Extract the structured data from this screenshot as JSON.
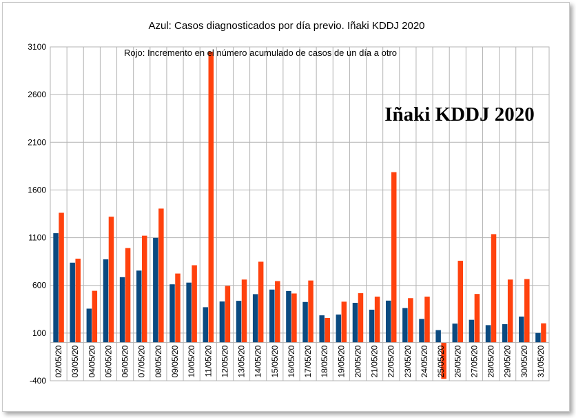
{
  "chart_data": {
    "type": "bar",
    "title": "Azul: Casos diagnosticados por día previo. Iñaki KDDJ 2020",
    "subtitle": "Rojo: Incremento en el número acumulado de casos de un día a otro",
    "watermark": "Iñaki KDDJ 2020",
    "xlabel": "",
    "ylabel": "",
    "ylim": [
      -400,
      3100
    ],
    "yticks": [
      -400,
      100,
      600,
      1100,
      1600,
      2100,
      2600,
      3100
    ],
    "grid": true,
    "legend": "none",
    "categories": [
      "02/05/20",
      "03/05/20",
      "04/05/20",
      "05/05/20",
      "06/05/20",
      "07/05/20",
      "08/05/20",
      "09/05/20",
      "10/05/20",
      "11/05/20",
      "12/05/20",
      "13/05/20",
      "14/05/20",
      "15/05/20",
      "16/05/20",
      "17/05/20",
      "18/05/20",
      "19/05/20",
      "20/05/20",
      "21/05/20",
      "22/05/20",
      "23/05/20",
      "24/05/20",
      "25/05/20",
      "26/05/20",
      "27/05/20",
      "28/05/20",
      "29/05/20",
      "30/05/20",
      "31/05/20"
    ],
    "series": [
      {
        "color": "#0b4a80",
        "values": [
          1147,
          838,
          356,
          873,
          686,
          755,
          1098,
          611,
          629,
          371,
          431,
          438,
          508,
          556,
          541,
          426,
          286,
          294,
          417,
          345,
          440,
          362,
          248,
          131,
          199,
          239,
          183,
          193,
          273,
          101
        ]
      },
      {
        "color": "#ff420e",
        "values": [
          1361,
          880,
          543,
          1320,
          991,
          1121,
          1405,
          724,
          811,
          3050,
          594,
          661,
          848,
          645,
          515,
          651,
          258,
          429,
          518,
          482,
          1787,
          466,
          482,
          -380,
          858,
          510,
          1137,
          661,
          666,
          202
        ]
      }
    ]
  }
}
